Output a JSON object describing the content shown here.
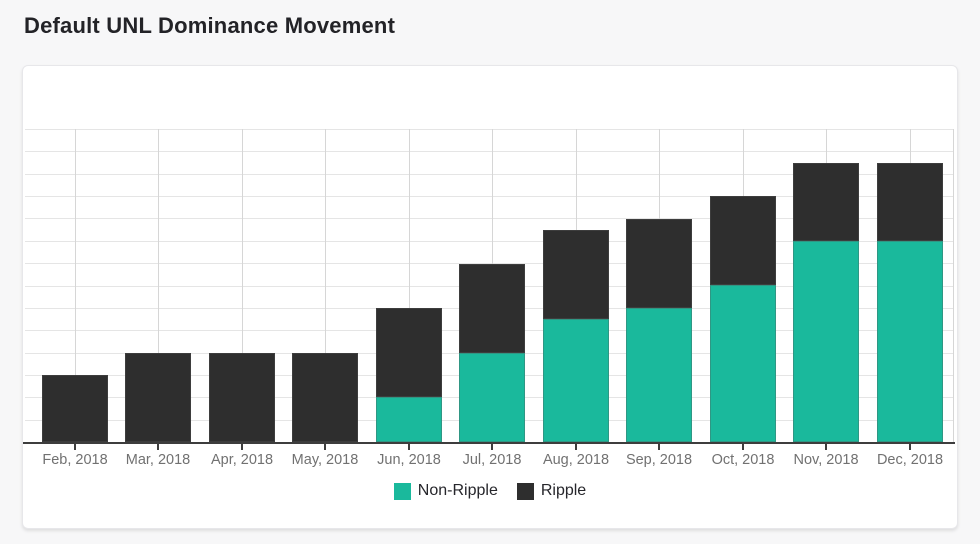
{
  "page": {
    "background": "#f7f7f8"
  },
  "chart_data": {
    "type": "bar",
    "stacked": true,
    "title": "Default UNL Dominance Movement",
    "xlabel": "",
    "ylabel": "",
    "categories": [
      "Feb, 2018",
      "Mar, 2018",
      "Apr, 2018",
      "May, 2018",
      "Jun, 2018",
      "Jul, 2018",
      "Aug, 2018",
      "Sep, 2018",
      "Oct, 2018",
      "Nov, 2018",
      "Dec, 2018"
    ],
    "series": [
      {
        "name": "Non-Ripple",
        "color": "#1ab99c",
        "values": [
          0,
          0,
          0,
          0,
          2,
          4,
          5.5,
          6,
          7,
          9,
          9
        ]
      },
      {
        "name": "Ripple",
        "color": "#2e2e2e",
        "values": [
          3,
          4,
          4,
          4,
          4,
          4,
          4,
          4,
          4,
          3.5,
          3.5
        ]
      }
    ],
    "ylim": [
      0,
      14
    ],
    "y_gridline_step": 1,
    "y_tick_labels_visible": false,
    "grid": true,
    "legend_position": "bottom",
    "legend": [
      "Non-Ripple",
      "Ripple"
    ]
  },
  "style": {
    "h_gridline_color": "#e5e5e5",
    "v_gridline_color": "#d6d6d6",
    "axis_color": "#3d3d3d",
    "label_color": "#717171",
    "card_color": "#ffffff"
  }
}
